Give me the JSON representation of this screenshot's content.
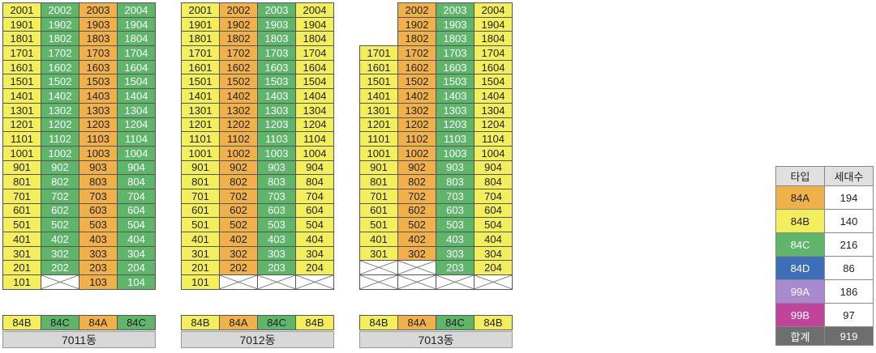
{
  "colors": {
    "84A": "#f0b04a",
    "84B": "#f3ef5c",
    "84C": "#5fb56a",
    "84D": "#3d6fb8",
    "99A": "#a98ad0",
    "99B": "#c2439a",
    "total": "#6e6e6e",
    "label": "#d8d8d8"
  },
  "buildings": [
    {
      "name": "7011동",
      "types": [
        "84B",
        "84C",
        "84A",
        "84C"
      ],
      "top_floor": 20,
      "min_floor": [
        1,
        2,
        1,
        1
      ],
      "crossed": [
        [
          "101",
          false
        ],
        [
          "102",
          true
        ]
      ]
    },
    {
      "name": "7012동",
      "types": [
        "84B",
        "84A",
        "84C",
        "84B"
      ],
      "top_floor": 20,
      "min_floor": [
        1,
        2,
        2,
        2
      ],
      "crossed": []
    },
    {
      "name": "7013동",
      "types": [
        "84B",
        "84A",
        "84C",
        "84B"
      ],
      "top_floor": 20,
      "top_floor_per_line": [
        17,
        20,
        20,
        20
      ],
      "min_floor": [
        3,
        3,
        2,
        2
      ],
      "crossed": []
    }
  ],
  "legend": {
    "header_type": "타입",
    "header_count": "세대수",
    "rows": [
      {
        "type": "84A",
        "count": "194"
      },
      {
        "type": "84B",
        "count": "140"
      },
      {
        "type": "84C",
        "count": "216"
      },
      {
        "type": "84D",
        "count": "86"
      },
      {
        "type": "99A",
        "count": "186"
      },
      {
        "type": "99B",
        "count": "97"
      }
    ],
    "total_label": "합계",
    "total_count": "919"
  }
}
